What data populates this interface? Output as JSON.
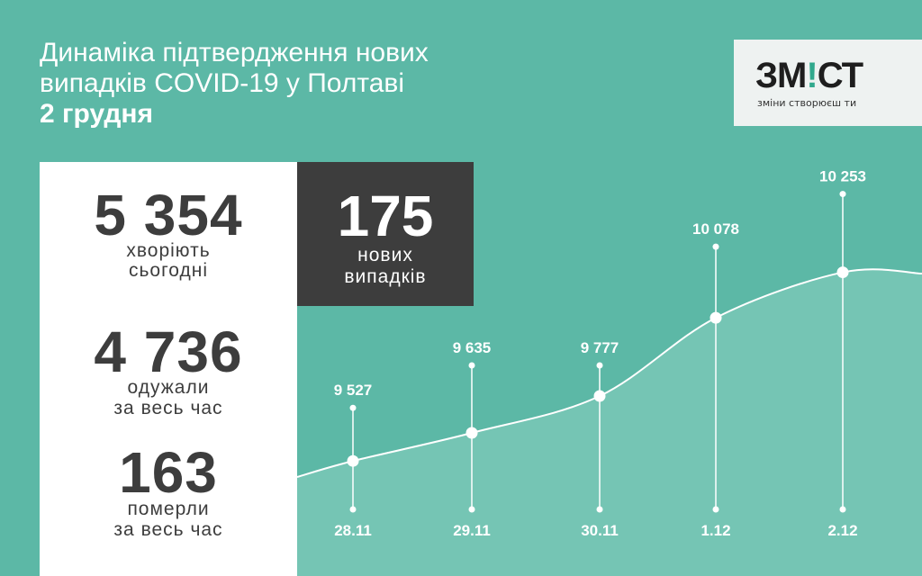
{
  "header": {
    "title_line1": "Динаміка підтвердження нових",
    "title_line2": "випадків COVID-19 у Полтаві",
    "date": "2 грудня"
  },
  "logo": {
    "main_prefix": "ЗМ",
    "main_accent": "!",
    "main_suffix": "СТ",
    "tagline": "зміни створюєш ти"
  },
  "stats": {
    "sick": {
      "value": "5 354",
      "label1": "хворіють",
      "label2": "сьогодні"
    },
    "recovered": {
      "value": "4 736",
      "label1": "одужали",
      "label2": "за весь час"
    },
    "died": {
      "value": "163",
      "label1": "померли",
      "label2": "за весь час"
    }
  },
  "new_cases": {
    "value": "175",
    "label1": "нових",
    "label2": "випадків"
  },
  "colors": {
    "background": "#5cb8a6",
    "dark": "#3d3d3d",
    "area": "#7ec9b8",
    "accent": "#31a98d"
  },
  "chart_data": {
    "type": "area",
    "categories": [
      "28.11",
      "29.11",
      "30.11",
      "1.12",
      "2.12"
    ],
    "values": [
      9527,
      9635,
      9777,
      10078,
      10253
    ],
    "value_labels": [
      "9 527",
      "9 635",
      "9 777",
      "10 078",
      "10 253"
    ],
    "title": "",
    "xlabel": "",
    "ylabel": "",
    "grid": false
  }
}
